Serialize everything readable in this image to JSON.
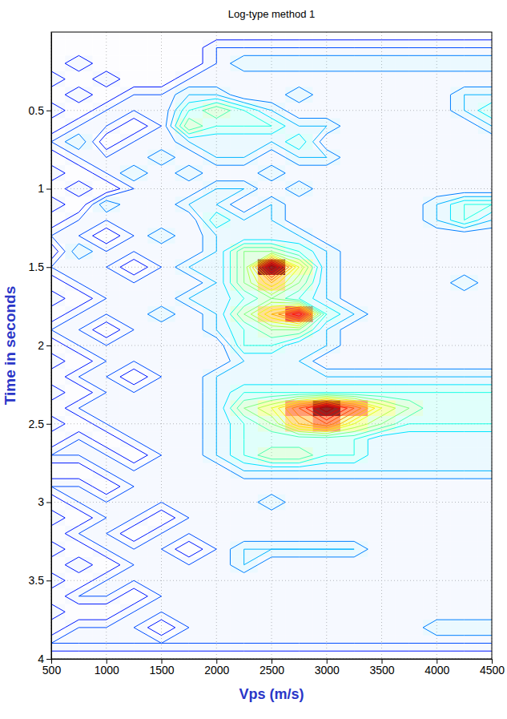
{
  "chart_data": {
    "type": "contour",
    "title": "Log-type method 1",
    "x_label": "Vps (m/s)",
    "y_label": "Time in seconds",
    "xlim": [
      500,
      4500
    ],
    "ylim": [
      0,
      4
    ],
    "xticks": [
      500,
      1000,
      1500,
      2000,
      2500,
      3000,
      3500,
      4000,
      4500
    ],
    "yticks": [
      0.5,
      1,
      1.5,
      2,
      2.5,
      3,
      3.5,
      4
    ],
    "grid": true,
    "x": [
      500,
      750,
      1000,
      1250,
      1500,
      1750,
      2000,
      2250,
      2500,
      2750,
      3000,
      3250,
      3500,
      3750,
      4000,
      4250,
      4500
    ],
    "y": [
      0,
      0.1,
      0.2,
      0.3,
      0.4,
      0.5,
      0.6,
      0.7,
      0.8,
      0.9,
      1,
      1.1,
      1.2,
      1.3,
      1.4,
      1.5,
      1.6,
      1.7,
      1.8,
      1.9,
      2,
      2.1,
      2.2,
      2.3,
      2.4,
      2.5,
      2.6,
      2.7,
      2.8,
      2.9,
      3,
      3.1,
      3.2,
      3.3,
      3.4,
      3.5,
      3.6,
      3.7,
      3.8,
      3.9,
      4
    ],
    "zlim": [
      0,
      1
    ],
    "z": [
      [
        0.1,
        0.1,
        0.1,
        0.1,
        0.1,
        0.1,
        0.1,
        0.1,
        0.1,
        0.1,
        0.1,
        0.1,
        0.1,
        0.1,
        0.1,
        0.1,
        0.1
      ],
      [
        0.1,
        0.1,
        0.1,
        0.1,
        0.1,
        0.1,
        0.2,
        0.2,
        0.2,
        0.2,
        0.2,
        0.2,
        0.2,
        0.2,
        0.2,
        0.2,
        0.2
      ],
      [
        0.1,
        0.2,
        0.1,
        0.1,
        0.1,
        0.1,
        0.2,
        0.3,
        0.3,
        0.3,
        0.3,
        0.3,
        0.3,
        0.3,
        0.3,
        0.3,
        0.3
      ],
      [
        0.2,
        0.1,
        0.2,
        0.1,
        0.1,
        0.2,
        0.2,
        0.2,
        0.2,
        0.2,
        0.2,
        0.2,
        0.2,
        0.2,
        0.2,
        0.2,
        0.2
      ],
      [
        0.1,
        0.2,
        0.1,
        0.2,
        0.2,
        0.3,
        0.3,
        0.2,
        0.2,
        0.3,
        0.2,
        0.2,
        0.2,
        0.2,
        0.2,
        0.3,
        0.3
      ],
      [
        0.2,
        0.1,
        0.2,
        0.2,
        0.2,
        0.4,
        0.5,
        0.4,
        0.3,
        0.2,
        0.2,
        0.2,
        0.2,
        0.2,
        0.2,
        0.3,
        0.4
      ],
      [
        0.1,
        0.2,
        0.2,
        0.1,
        0.2,
        0.5,
        0.4,
        0.4,
        0.4,
        0.3,
        0.3,
        0.2,
        0.2,
        0.2,
        0.2,
        0.2,
        0.3
      ],
      [
        0.2,
        0.3,
        0.1,
        0.2,
        0.2,
        0.3,
        0.3,
        0.3,
        0.3,
        0.4,
        0.2,
        0.2,
        0.2,
        0.2,
        0.2,
        0.2,
        0.2
      ],
      [
        0.1,
        0.2,
        0.2,
        0.2,
        0.3,
        0.2,
        0.3,
        0.3,
        0.2,
        0.3,
        0.3,
        0.2,
        0.2,
        0.2,
        0.2,
        0.2,
        0.2
      ],
      [
        0.2,
        0.1,
        0.2,
        0.3,
        0.2,
        0.3,
        0.2,
        0.2,
        0.3,
        0.2,
        0.2,
        0.2,
        0.2,
        0.2,
        0.2,
        0.2,
        0.2
      ],
      [
        0.1,
        0.2,
        0.1,
        0.2,
        0.2,
        0.2,
        0.3,
        0.3,
        0.2,
        0.3,
        0.2,
        0.2,
        0.2,
        0.2,
        0.2,
        0.2,
        0.2
      ],
      [
        0.2,
        0.1,
        0.3,
        0.2,
        0.2,
        0.3,
        0.3,
        0.2,
        0.3,
        0.2,
        0.2,
        0.2,
        0.2,
        0.2,
        0.3,
        0.4,
        0.4
      ],
      [
        0.1,
        0.2,
        0.2,
        0.2,
        0.2,
        0.2,
        0.4,
        0.3,
        0.3,
        0.2,
        0.2,
        0.2,
        0.2,
        0.2,
        0.3,
        0.4,
        0.3
      ],
      [
        0.2,
        0.2,
        0.1,
        0.2,
        0.3,
        0.2,
        0.3,
        0.3,
        0.3,
        0.3,
        0.2,
        0.2,
        0.2,
        0.2,
        0.2,
        0.2,
        0.2
      ],
      [
        0.1,
        0.3,
        0.2,
        0.2,
        0.2,
        0.2,
        0.3,
        0.5,
        0.5,
        0.4,
        0.3,
        0.2,
        0.2,
        0.2,
        0.2,
        0.2,
        0.2
      ],
      [
        0.2,
        0.2,
        0.2,
        0.1,
        0.2,
        0.3,
        0.3,
        0.5,
        1.0,
        0.6,
        0.3,
        0.2,
        0.2,
        0.2,
        0.2,
        0.2,
        0.2
      ],
      [
        0.1,
        0.2,
        0.2,
        0.2,
        0.2,
        0.2,
        0.3,
        0.5,
        0.7,
        0.5,
        0.3,
        0.2,
        0.2,
        0.2,
        0.2,
        0.3,
        0.2
      ],
      [
        0.2,
        0.1,
        0.2,
        0.2,
        0.2,
        0.3,
        0.3,
        0.4,
        0.5,
        0.4,
        0.3,
        0.2,
        0.2,
        0.2,
        0.2,
        0.2,
        0.2
      ],
      [
        0.1,
        0.2,
        0.2,
        0.2,
        0.3,
        0.2,
        0.3,
        0.5,
        0.7,
        0.9,
        0.4,
        0.3,
        0.2,
        0.2,
        0.2,
        0.2,
        0.2
      ],
      [
        0.2,
        0.2,
        0.1,
        0.2,
        0.2,
        0.2,
        0.3,
        0.4,
        0.5,
        0.5,
        0.3,
        0.2,
        0.2,
        0.2,
        0.2,
        0.2,
        0.2
      ],
      [
        0.1,
        0.2,
        0.2,
        0.2,
        0.2,
        0.2,
        0.2,
        0.4,
        0.4,
        0.3,
        0.3,
        0.2,
        0.2,
        0.2,
        0.2,
        0.2,
        0.2
      ],
      [
        0.2,
        0.1,
        0.2,
        0.2,
        0.2,
        0.2,
        0.2,
        0.3,
        0.3,
        0.3,
        0.2,
        0.2,
        0.2,
        0.2,
        0.2,
        0.2,
        0.2
      ],
      [
        0.1,
        0.2,
        0.2,
        0.1,
        0.2,
        0.2,
        0.3,
        0.3,
        0.3,
        0.3,
        0.3,
        0.3,
        0.3,
        0.3,
        0.3,
        0.3,
        0.3
      ],
      [
        0.2,
        0.1,
        0.2,
        0.2,
        0.2,
        0.2,
        0.3,
        0.4,
        0.4,
        0.4,
        0.4,
        0.4,
        0.4,
        0.4,
        0.4,
        0.4,
        0.4
      ],
      [
        0.1,
        0.2,
        0.2,
        0.2,
        0.2,
        0.2,
        0.3,
        0.5,
        0.6,
        0.8,
        1.0,
        0.8,
        0.6,
        0.5,
        0.4,
        0.4,
        0.4
      ],
      [
        0.2,
        0.1,
        0.2,
        0.2,
        0.2,
        0.2,
        0.3,
        0.4,
        0.5,
        0.7,
        0.8,
        0.6,
        0.5,
        0.4,
        0.4,
        0.4,
        0.4
      ],
      [
        0.1,
        0.2,
        0.1,
        0.2,
        0.2,
        0.2,
        0.3,
        0.4,
        0.4,
        0.4,
        0.4,
        0.4,
        0.3,
        0.3,
        0.3,
        0.3,
        0.3
      ],
      [
        0.2,
        0.2,
        0.2,
        0.1,
        0.2,
        0.2,
        0.3,
        0.4,
        0.5,
        0.5,
        0.4,
        0.4,
        0.3,
        0.3,
        0.3,
        0.3,
        0.3
      ],
      [
        0.1,
        0.1,
        0.2,
        0.2,
        0.2,
        0.2,
        0.2,
        0.3,
        0.3,
        0.3,
        0.3,
        0.3,
        0.3,
        0.3,
        0.3,
        0.3,
        0.3
      ],
      [
        0.2,
        0.2,
        0.1,
        0.2,
        0.2,
        0.2,
        0.2,
        0.2,
        0.2,
        0.2,
        0.2,
        0.2,
        0.2,
        0.2,
        0.2,
        0.2,
        0.2
      ],
      [
        0.1,
        0.2,
        0.2,
        0.2,
        0.2,
        0.2,
        0.2,
        0.2,
        0.3,
        0.2,
        0.2,
        0.2,
        0.2,
        0.2,
        0.2,
        0.2,
        0.2
      ],
      [
        0.2,
        0.1,
        0.2,
        0.2,
        0.1,
        0.2,
        0.2,
        0.2,
        0.2,
        0.2,
        0.2,
        0.2,
        0.2,
        0.2,
        0.2,
        0.2,
        0.2
      ],
      [
        0.1,
        0.2,
        0.2,
        0.1,
        0.2,
        0.2,
        0.2,
        0.2,
        0.2,
        0.2,
        0.2,
        0.2,
        0.2,
        0.2,
        0.2,
        0.2,
        0.2
      ],
      [
        0.2,
        0.1,
        0.2,
        0.2,
        0.2,
        0.1,
        0.2,
        0.3,
        0.3,
        0.3,
        0.3,
        0.3,
        0.2,
        0.2,
        0.2,
        0.2,
        0.2
      ],
      [
        0.1,
        0.2,
        0.1,
        0.2,
        0.2,
        0.2,
        0.2,
        0.3,
        0.2,
        0.2,
        0.2,
        0.2,
        0.2,
        0.2,
        0.2,
        0.2,
        0.2
      ],
      [
        0.2,
        0.1,
        0.2,
        0.2,
        0.2,
        0.2,
        0.2,
        0.2,
        0.2,
        0.2,
        0.2,
        0.2,
        0.2,
        0.2,
        0.2,
        0.2,
        0.2
      ],
      [
        0.1,
        0.2,
        0.2,
        0.1,
        0.2,
        0.2,
        0.2,
        0.2,
        0.2,
        0.2,
        0.2,
        0.2,
        0.2,
        0.2,
        0.2,
        0.2,
        0.2
      ],
      [
        0.2,
        0.1,
        0.1,
        0.2,
        0.2,
        0.2,
        0.2,
        0.2,
        0.2,
        0.2,
        0.2,
        0.2,
        0.2,
        0.2,
        0.2,
        0.2,
        0.2
      ],
      [
        0.1,
        0.2,
        0.2,
        0.2,
        0.1,
        0.2,
        0.2,
        0.2,
        0.2,
        0.2,
        0.2,
        0.2,
        0.2,
        0.2,
        0.3,
        0.3,
        0.3
      ],
      [
        0.2,
        0.2,
        0.2,
        0.2,
        0.2,
        0.2,
        0.2,
        0.2,
        0.2,
        0.2,
        0.2,
        0.2,
        0.2,
        0.2,
        0.2,
        0.2,
        0.2
      ],
      [
        0.1,
        0.1,
        0.1,
        0.1,
        0.1,
        0.1,
        0.1,
        0.1,
        0.1,
        0.1,
        0.1,
        0.1,
        0.1,
        0.1,
        0.1,
        0.1,
        0.1
      ]
    ]
  }
}
